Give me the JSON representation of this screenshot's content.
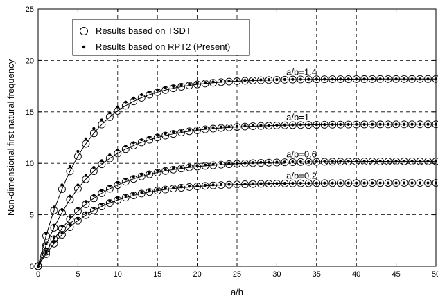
{
  "chart_data": {
    "type": "line",
    "xlabel": "a/h",
    "ylabel": "Non-dimensional first natural frequency",
    "xlim": [
      0,
      50
    ],
    "ylim": [
      0,
      25
    ],
    "x_ticks": [
      "0",
      "5",
      "10",
      "15",
      "20",
      "25",
      "30",
      "35",
      "40",
      "45",
      "50"
    ],
    "y_ticks": [
      "0",
      "5",
      "10",
      "15",
      "20",
      "25"
    ],
    "grid": true,
    "legend_position": "top-left",
    "legend": [
      {
        "marker": "open-circle",
        "label": "Results based on TSDT"
      },
      {
        "marker": "filled-dot",
        "label": "Results based on RPT2 (Present)"
      }
    ],
    "x": [
      0,
      1,
      2,
      3,
      4,
      5,
      6,
      7,
      8,
      9,
      10,
      11,
      12,
      13,
      14,
      15,
      16,
      17,
      18,
      19,
      20,
      21,
      22,
      23,
      24,
      25,
      26,
      27,
      28,
      29,
      30,
      31,
      32,
      33,
      34,
      35,
      36,
      37,
      38,
      39,
      40,
      41,
      42,
      43,
      44,
      45,
      46,
      47,
      48,
      49,
      50
    ],
    "series": [
      {
        "label": "a/b=1.4",
        "asymptote": 18.2,
        "k": 0.19,
        "value_at_50": 18.1
      },
      {
        "label": "a/b=1",
        "asymptote": 13.8,
        "k": 0.17,
        "value_at_50": 13.7
      },
      {
        "label": "a/b=0.6",
        "asymptote": 10.2,
        "k": 0.16,
        "value_at_50": 10.2
      },
      {
        "label": "a/b=0.2",
        "asymptote": 8.1,
        "k": 0.17,
        "value_at_50": 8.1
      }
    ]
  }
}
